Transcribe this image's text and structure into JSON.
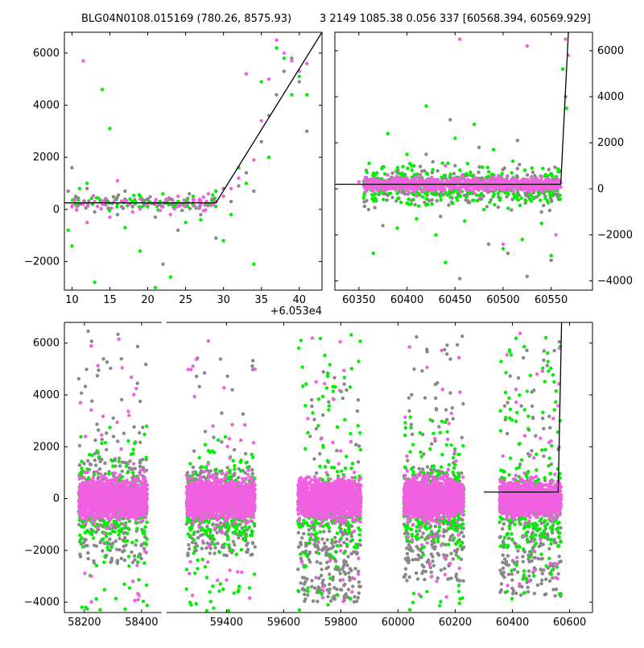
{
  "titles": {
    "left": "BLG04N0108.015169 (780.26, 8575.93)",
    "right": "3 2149 1085.38 0.056 337 [60568.394, 60569.929]"
  },
  "colors": {
    "magenta": "#f060e0",
    "green": "#00ee00",
    "gray": "#888888",
    "model_line": "#000000"
  },
  "chart_data": [
    {
      "panel": "top-left",
      "type": "scatter",
      "title": "",
      "x_offset_label": "+6.053e4",
      "xlim": [
        9,
        43
      ],
      "ylim": [
        -3100,
        6800
      ],
      "xticks": [
        10,
        15,
        20,
        25,
        30,
        35,
        40
      ],
      "xtick_labels": [
        "10",
        "15",
        "20",
        "25",
        "30",
        "35",
        "40"
      ],
      "yticks": [
        -2000,
        0,
        2000,
        4000,
        6000
      ],
      "ytick_labels": [
        "−2000",
        "0",
        "2000",
        "4000",
        "6000"
      ],
      "ytick_side": "left",
      "model_line": [
        [
          9,
          250
        ],
        [
          29,
          250
        ],
        [
          43,
          6800
        ]
      ],
      "series": [
        {
          "color": "gray",
          "points": [
            [
              9.5,
              700
            ],
            [
              10,
              1600
            ],
            [
              10.5,
              500
            ],
            [
              11,
              200
            ],
            [
              12,
              800
            ],
            [
              13,
              -100
            ],
            [
              14.5,
              300
            ],
            [
              16,
              -200
            ],
            [
              17,
              700
            ],
            [
              18,
              100
            ],
            [
              19.5,
              200
            ],
            [
              21,
              -300
            ],
            [
              22,
              -2100
            ],
            [
              23,
              400
            ],
            [
              24,
              -800
            ],
            [
              25.5,
              600
            ],
            [
              27,
              -200
            ],
            [
              28.5,
              400
            ],
            [
              29,
              -1100
            ],
            [
              30,
              800
            ],
            [
              31,
              300
            ],
            [
              32,
              900
            ],
            [
              33,
              1400
            ],
            [
              34,
              700
            ],
            [
              35,
              2600
            ],
            [
              36,
              3600
            ],
            [
              37,
              4400
            ],
            [
              38,
              5300
            ],
            [
              39,
              5800
            ],
            [
              40,
              4900
            ],
            [
              41,
              3000
            ]
          ]
        },
        {
          "color": "green",
          "points": [
            [
              9.5,
              -800
            ],
            [
              10,
              -1400
            ],
            [
              11,
              800
            ],
            [
              12,
              1000
            ],
            [
              13,
              -2800
            ],
            [
              14,
              4600
            ],
            [
              15,
              3100
            ],
            [
              16,
              200
            ],
            [
              17,
              -700
            ],
            [
              18,
              300
            ],
            [
              19,
              -1600
            ],
            [
              20,
              100
            ],
            [
              21,
              -3000
            ],
            [
              22,
              600
            ],
            [
              23,
              -2600
            ],
            [
              24,
              300
            ],
            [
              25,
              -500
            ],
            [
              26,
              500
            ],
            [
              27,
              -400
            ],
            [
              28,
              200
            ],
            [
              29,
              700
            ],
            [
              30,
              -1200
            ],
            [
              31,
              -200
            ],
            [
              32,
              1600
            ],
            [
              33,
              1000
            ],
            [
              34,
              -2100
            ],
            [
              35,
              4900
            ],
            [
              36,
              2000
            ],
            [
              37,
              6200
            ],
            [
              38,
              5800
            ],
            [
              39,
              4400
            ],
            [
              40,
              5100
            ],
            [
              41,
              4400
            ]
          ]
        },
        {
          "color": "magenta",
          "points": [
            [
              10,
              100
            ],
            [
              11.5,
              5700
            ],
            [
              12,
              -500
            ],
            [
              13,
              300
            ],
            [
              14,
              200
            ],
            [
              15,
              -300
            ],
            [
              16,
              1100
            ],
            [
              17,
              300
            ],
            [
              18,
              -100
            ],
            [
              19,
              400
            ],
            [
              20,
              200
            ],
            [
              21,
              300
            ],
            [
              22,
              100
            ],
            [
              23,
              -200
            ],
            [
              24,
              500
            ],
            [
              25,
              200
            ],
            [
              26,
              400
            ],
            [
              27,
              300
            ],
            [
              28,
              600
            ],
            [
              29,
              300
            ],
            [
              30,
              500
            ],
            [
              31,
              800
            ],
            [
              32,
              1200
            ],
            [
              33,
              5200
            ],
            [
              34,
              1900
            ],
            [
              35,
              3400
            ],
            [
              36,
              5000
            ],
            [
              37,
              6500
            ],
            [
              38,
              6000
            ],
            [
              39,
              5700
            ],
            [
              40,
              5300
            ],
            [
              41,
              5600
            ]
          ]
        }
      ]
    },
    {
      "panel": "top-right",
      "type": "scatter",
      "title": "",
      "xlim": [
        60325,
        60593
      ],
      "ylim": [
        -4400,
        6800
      ],
      "xticks": [
        60350,
        60400,
        60450,
        60500,
        60550
      ],
      "xtick_labels": [
        "60350",
        "60400",
        "60450",
        "60500",
        "60550"
      ],
      "yticks": [
        -4000,
        -2000,
        0,
        2000,
        4000,
        6000
      ],
      "ytick_labels": [
        "−4000",
        "−2000",
        "0",
        "2000",
        "4000",
        "6000"
      ],
      "ytick_side": "right",
      "model_line": [
        [
          60325,
          200
        ],
        [
          60560,
          200
        ],
        [
          60568,
          6800
        ]
      ],
      "series": [
        {
          "color": "gray",
          "points": [
            [
              60360,
              -900
            ],
            [
              60375,
              -1600
            ],
            [
              60390,
              700
            ],
            [
              60405,
              -500
            ],
            [
              60420,
              1500
            ],
            [
              60435,
              -1200
            ],
            [
              60445,
              3000
            ],
            [
              60455,
              -3900
            ],
            [
              60465,
              -600
            ],
            [
              60475,
              1800
            ],
            [
              60485,
              -2400
            ],
            [
              60495,
              -800
            ],
            [
              60505,
              -2800
            ],
            [
              60515,
              2100
            ],
            [
              60525,
              -3800
            ],
            [
              60540,
              -1000
            ],
            [
              60550,
              -3100
            ],
            [
              60565,
              4000
            ]
          ]
        },
        {
          "color": "green",
          "points": [
            [
              60355,
              -400
            ],
            [
              60365,
              -2800
            ],
            [
              60380,
              2400
            ],
            [
              60390,
              -1700
            ],
            [
              60400,
              1500
            ],
            [
              60410,
              -1300
            ],
            [
              60420,
              3600
            ],
            [
              60430,
              -2000
            ],
            [
              60440,
              -3200
            ],
            [
              60450,
              2200
            ],
            [
              60460,
              -1400
            ],
            [
              60470,
              2800
            ],
            [
              60480,
              -900
            ],
            [
              60490,
              1700
            ],
            [
              60500,
              -2600
            ],
            [
              60510,
              1200
            ],
            [
              60520,
              -2200
            ],
            [
              60530,
              900
            ],
            [
              60540,
              -1500
            ],
            [
              60550,
              -2900
            ],
            [
              60562,
              5200
            ],
            [
              60566,
              3500
            ]
          ]
        },
        {
          "color": "magenta",
          "points": [
            [
              60350,
              300
            ],
            [
              60365,
              -100
            ],
            [
              60380,
              600
            ],
            [
              60395,
              100
            ],
            [
              60410,
              -300
            ],
            [
              60425,
              400
            ],
            [
              60440,
              1000
            ],
            [
              60455,
              6500
            ],
            [
              60470,
              -200
            ],
            [
              60485,
              300
            ],
            [
              60500,
              -2400
            ],
            [
              60515,
              200
            ],
            [
              60525,
              6200
            ],
            [
              60540,
              500
            ],
            [
              60555,
              -2000
            ],
            [
              60565,
              6500
            ],
            [
              60568,
              5800
            ]
          ]
        }
      ]
    },
    {
      "panel": "bottom",
      "type": "scatter",
      "title": "",
      "xlim": [
        58000,
        60680
      ],
      "ylim": [
        -4400,
        6800
      ],
      "broken_axis_segments": [
        [
          58130,
          58470
        ],
        [
          59190,
          60680
        ]
      ],
      "xticks": [
        58200,
        58400,
        59400,
        59600,
        59800,
        60000,
        60200,
        60400,
        60600
      ],
      "xtick_labels": [
        "58200",
        "58400",
        "59400",
        "59600",
        "59800",
        "60000",
        "60200",
        "60400",
        "60600"
      ],
      "yticks": [
        -4000,
        -2000,
        0,
        2000,
        4000,
        6000
      ],
      "ytick_labels": [
        "−4000",
        "−2000",
        "0",
        "2000",
        "4000",
        "6000"
      ],
      "ytick_side": "left",
      "model_line": [
        [
          60300,
          250
        ],
        [
          60560,
          250
        ],
        [
          60572,
          6800
        ]
      ],
      "season_clusters": [
        {
          "x_range": [
            58180,
            58420
          ],
          "magenta_core": [
            -700,
            700
          ],
          "green_range": [
            -4300,
            2800
          ],
          "gray_range": [
            -2500,
            6600
          ]
        },
        {
          "x_range": [
            59260,
            59500
          ],
          "magenta_core": [
            -700,
            700
          ],
          "green_range": [
            -4400,
            2400
          ],
          "gray_range": [
            -2200,
            5500
          ]
        },
        {
          "x_range": [
            59650,
            59870
          ],
          "magenta_core": [
            -700,
            700
          ],
          "green_range": [
            -4300,
            6500
          ],
          "gray_range": [
            -4000,
            4900
          ]
        },
        {
          "x_range": [
            60020,
            60230
          ],
          "magenta_core": [
            -700,
            700
          ],
          "green_range": [
            -4400,
            3200
          ],
          "gray_range": [
            -3200,
            6600
          ]
        },
        {
          "x_range": [
            60355,
            60570
          ],
          "magenta_core": [
            -600,
            600
          ],
          "green_range": [
            -3900,
            6300
          ],
          "gray_range": [
            -3800,
            6400
          ]
        }
      ]
    }
  ]
}
